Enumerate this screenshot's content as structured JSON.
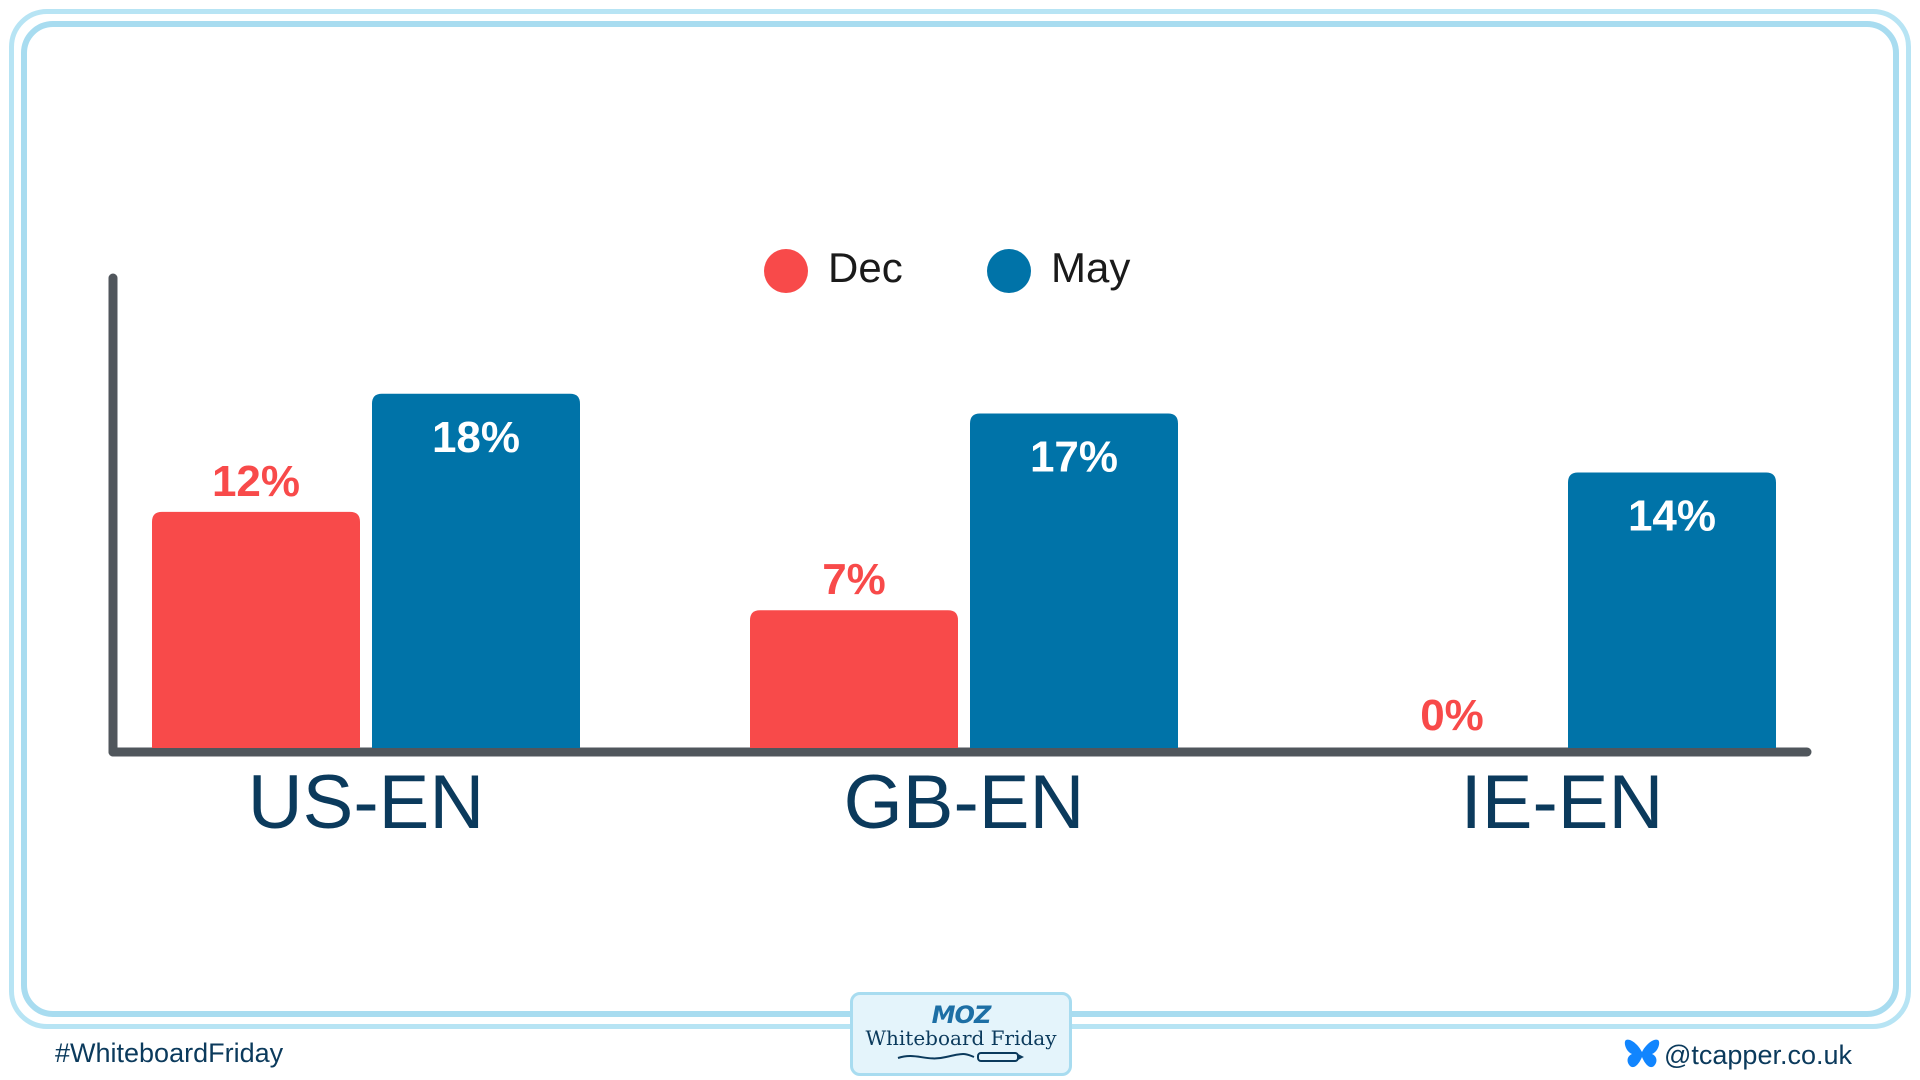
{
  "chart_data": {
    "type": "bar",
    "categories": [
      "US-EN",
      "GB-EN",
      "IE-EN"
    ],
    "series": [
      {
        "name": "Dec",
        "values": [
          12,
          7,
          0
        ],
        "labels": [
          "12%",
          "7%",
          "0%"
        ],
        "color": "#f84a4a"
      },
      {
        "name": "May",
        "values": [
          18,
          17,
          14
        ],
        "labels": [
          "18%",
          "17%",
          "14%"
        ],
        "color": "#0073a8"
      }
    ],
    "legend_position": "top-center",
    "ylim": [
      0,
      25
    ],
    "grid": false
  },
  "colors": {
    "axis": "#50565c",
    "category_text": "#0b3a5c",
    "board_border": "#a8dcf0"
  },
  "footer": {
    "hashtag": "#WhiteboardFriday",
    "handle": "@tcapper.co.uk",
    "logo_brand": "MOZ",
    "logo_title": "Whiteboard Friday"
  },
  "icons": {
    "handle_icon": "butterfly-icon",
    "logo_icon": "pen-icon"
  }
}
